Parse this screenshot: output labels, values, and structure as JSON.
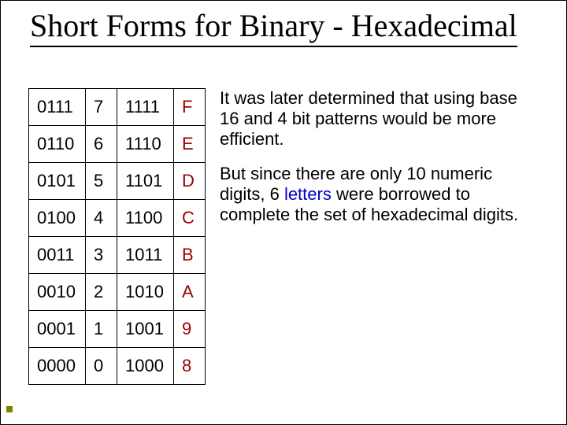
{
  "title_line": "Short Forms for Binary - Hexadecimal",
  "table": {
    "rows": [
      {
        "c1": "0111",
        "c2": "7",
        "c3": "1111",
        "c4": "F"
      },
      {
        "c1": "0110",
        "c2": "6",
        "c3": "1110",
        "c4": "E"
      },
      {
        "c1": "0101",
        "c2": "5",
        "c3": "1101",
        "c4": "D"
      },
      {
        "c1": "0100",
        "c2": "4",
        "c3": "1100",
        "c4": "C"
      },
      {
        "c1": "0011",
        "c2": "3",
        "c3": "1011",
        "c4": "B"
      },
      {
        "c1": "0010",
        "c2": "2",
        "c3": "1010",
        "c4": "A"
      },
      {
        "c1": "0001",
        "c2": "1",
        "c3": "1001",
        "c4": "9"
      },
      {
        "c1": "0000",
        "c2": "0",
        "c3": "1000",
        "c4": "8"
      }
    ],
    "columns": [
      {
        "name": "binary-low",
        "width": 72
      },
      {
        "name": "dec-low",
        "width": 40
      },
      {
        "name": "binary-high",
        "width": 72
      },
      {
        "name": "hex-high",
        "width": 40,
        "color": "#990000"
      }
    ]
  },
  "paragraphs": {
    "p1": "It was later determined that using base 16 and 4 bit patterns would be more efficient.",
    "p2_pre": "But since there are only 10 numeric digits, 6 ",
    "p2_highlight": "letters",
    "p2_post": " were borrowed to complete the set of hexadecimal digits."
  },
  "style": {
    "background_color": "#ffffff",
    "title_color": "#000000",
    "title_fontsize": 40,
    "body_fontsize": 22,
    "hex_letter_color": "#990000",
    "link_word_color": "#0000cc",
    "border_color": "#000000",
    "bullet_color": "#808000"
  }
}
